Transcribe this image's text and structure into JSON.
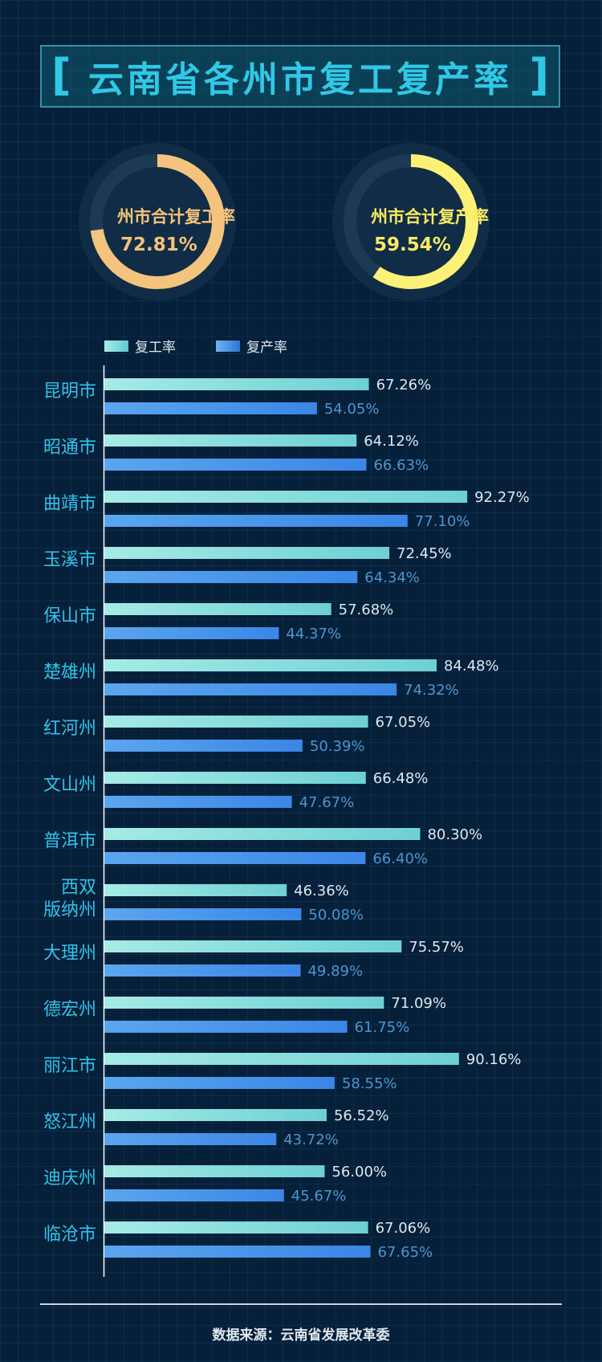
{
  "title": "云南省各州市复工复产率",
  "title_bracket_left": "[",
  "title_bracket_right": "]",
  "gauges": [
    {
      "label": "州市合计复工率",
      "value_text": "72.81%",
      "value": 72.81,
      "color": "#f4c47e",
      "label_color": "#f3c37a"
    },
    {
      "label": "州市合计复产率",
      "value_text": "59.54%",
      "value": 59.54,
      "color": "#fbf176",
      "label_color": "#f8eb64"
    }
  ],
  "legend": {
    "work_label": "复工率",
    "production_label": "复产率"
  },
  "colors": {
    "work_bar": "#7fdcd9",
    "production_bar": "#3f8fe8",
    "city_text": "#33c2e8",
    "axis": "#ffffff"
  },
  "chart_data": {
    "type": "bar",
    "orientation": "horizontal",
    "categories": [
      "昆明市",
      "昭通市",
      "曲靖市",
      "玉溪市",
      "保山市",
      "楚雄州",
      "红河州",
      "文山州",
      "普洱市",
      "西双\n版纳州",
      "大理州",
      "德宏州",
      "丽江市",
      "怒江州",
      "迪庆州",
      "临沧市"
    ],
    "series": [
      {
        "name": "复工率",
        "values": [
          67.26,
          64.12,
          92.27,
          72.45,
          57.68,
          84.48,
          67.05,
          66.48,
          80.3,
          46.36,
          75.57,
          71.09,
          90.16,
          56.52,
          56.0,
          67.06
        ],
        "labels": [
          "67.26%",
          "64.12%",
          "92.27%",
          "72.45%",
          "57.68%",
          "84.48%",
          "67.05%",
          "66.48%",
          "80.30%",
          "46.36%",
          "75.57%",
          "71.09%",
          "90.16%",
          "56.52%",
          "56.00%",
          "67.06%"
        ]
      },
      {
        "name": "复产率",
        "values": [
          54.05,
          66.63,
          77.1,
          64.34,
          44.37,
          74.32,
          50.39,
          47.67,
          66.4,
          50.08,
          49.89,
          61.75,
          58.55,
          43.72,
          45.67,
          67.65
        ],
        "labels": [
          "54.05%",
          "66.63%",
          "77.10%",
          "64.34%",
          "44.37%",
          "74.32%",
          "50.39%",
          "47.67%",
          "66.40%",
          "50.08%",
          "49.89%",
          "61.75%",
          "58.55%",
          "43.72%",
          "45.67%",
          "67.65%"
        ]
      }
    ],
    "xlim": [
      0,
      100
    ],
    "legend_position": "top-left"
  },
  "source": "数据来源：云南省发展改革委"
}
